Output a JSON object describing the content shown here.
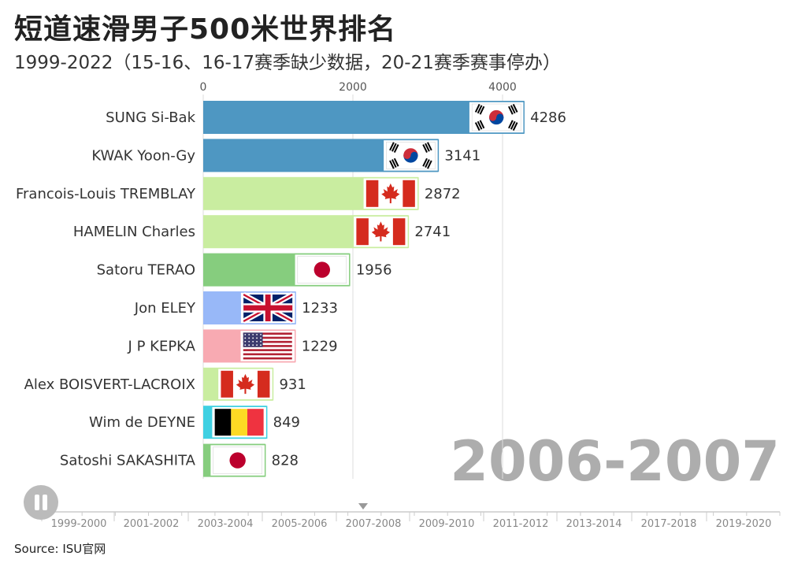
{
  "header": {
    "title": "短道速滑男子500米世界排名",
    "subtitle": "1999-2022（15-16、16-17赛季缺少数据，20-21赛季赛事停办）"
  },
  "footer": {
    "source": "Source: ISU官网"
  },
  "player": {
    "pause_icon": "pause-icon",
    "current_season": "2006-2007",
    "current_position": "2006-2007"
  },
  "chart_data": {
    "type": "bar",
    "orientation": "horizontal",
    "title": "短道速滑男子500米世界排名",
    "subtitle": "1999-2022（15-16、16-17赛季缺少数据，20-21赛季赛事停办）",
    "period": "2006-2007",
    "xlim": [
      0,
      4286
    ],
    "x_ticks": [
      0,
      2000,
      4000
    ],
    "x_tick_labels": [
      "0",
      "2000",
      "4000"
    ],
    "grid": true,
    "categories": [
      "SUNG Si-Bak",
      "KWAK Yoon-Gy",
      "Francois-Louis TREMBLAY",
      "HAMELIN Charles",
      "Satoru TERAO",
      "Jon ELEY",
      "J P KEPKA",
      "Alex BOISVERT-LACROIX",
      "Wim de DEYNE",
      "Satoshi SAKASHITA"
    ],
    "values": [
      4286,
      3141,
      2872,
      2741,
      1956,
      1233,
      1229,
      931,
      849,
      828
    ],
    "flags": [
      "korea-flag",
      "korea-flag",
      "canada-flag",
      "canada-flag",
      "japan-flag",
      "uk-flag",
      "usa-flag",
      "canada-flag",
      "belgium-flag",
      "japan-flag"
    ],
    "bar_colors": [
      "#4e97c2",
      "#4e97c2",
      "#c9eda0",
      "#c9eda0",
      "#86cd7e",
      "#98b8f8",
      "#f8aab2",
      "#c9eda0",
      "#3fd0e2",
      "#86cd7e"
    ],
    "timeline": [
      "1999-2000",
      "2001-2002",
      "2003-2004",
      "2005-2006",
      "2007-2008",
      "2009-2010",
      "2011-2012",
      "2013-2014",
      "2017-2018",
      "2019-2020"
    ]
  }
}
